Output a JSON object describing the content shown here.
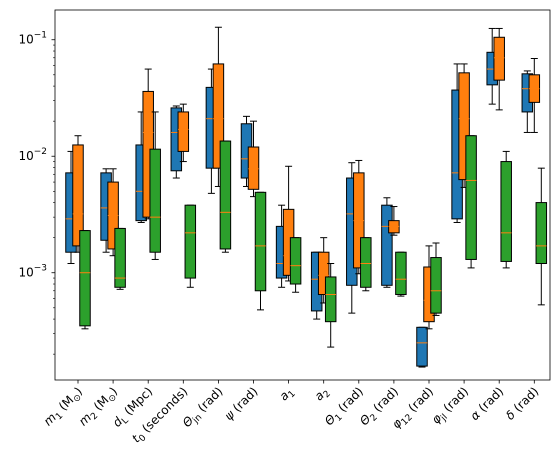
{
  "chart_data": {
    "type": "boxplot",
    "yscale": "log",
    "ylim": [
      0.00012,
      0.18
    ],
    "yticks": [
      {
        "value": 0.001,
        "base": "10",
        "exp": "−3"
      },
      {
        "value": 0.01,
        "base": "10",
        "exp": "−2"
      },
      {
        "value": 0.1,
        "base": "10",
        "exp": "−1"
      }
    ],
    "categories": [
      {
        "main": "m",
        "sub": "1",
        "unit": " (M",
        "unitsub": "⊙",
        "end": ")"
      },
      {
        "main": "m",
        "sub": "2",
        "unit": " (M",
        "unitsub": "⊙",
        "end": ")"
      },
      {
        "main": "d",
        "sub": "L",
        "unit": " (Mpc)",
        "unitsub": "",
        "end": ""
      },
      {
        "main": "t",
        "sub": "0",
        "unit": " (seconds)",
        "unitsub": "",
        "end": ""
      },
      {
        "main": "Θ",
        "sub": "jn",
        "unit": " (rad)",
        "unitsub": "",
        "end": ""
      },
      {
        "main": "ψ",
        "sub": "",
        "unit": " (rad)",
        "unitsub": "",
        "end": ""
      },
      {
        "main": "a",
        "sub": "1",
        "unit": "",
        "unitsub": "",
        "end": ""
      },
      {
        "main": "a",
        "sub": "2",
        "unit": "",
        "unitsub": "",
        "end": ""
      },
      {
        "main": "Θ",
        "sub": "1",
        "unit": " (rad)",
        "unitsub": "",
        "end": ""
      },
      {
        "main": "Θ",
        "sub": "2",
        "unit": " (rad)",
        "unitsub": "",
        "end": ""
      },
      {
        "main": "φ",
        "sub": "12",
        "unit": " (rad)",
        "unitsub": "",
        "end": ""
      },
      {
        "main": "φ",
        "sub": "jl",
        "unit": " (rad)",
        "unitsub": "",
        "end": ""
      },
      {
        "main": "α",
        "sub": "",
        "unit": " (rad)",
        "unitsub": "",
        "end": ""
      },
      {
        "main": "δ",
        "sub": "",
        "unit": " (rad)",
        "unitsub": "",
        "end": ""
      }
    ],
    "colors": {
      "blue": "#1f77b4",
      "orange": "#ff7f0e",
      "green": "#2ca02c",
      "median": "#ff7f0e",
      "whisker": "#000000"
    },
    "series": [
      {
        "color": "#1f77b4",
        "boxes": [
          {
            "whislo": 0.0012,
            "q1": 0.0015,
            "med": 0.0029,
            "q3": 0.0072,
            "whishi": 0.011
          },
          {
            "whislo": 0.0015,
            "q1": 0.0019,
            "med": 0.0036,
            "q3": 0.0072,
            "whishi": 0.0078
          },
          {
            "whislo": 0.0027,
            "q1": 0.0028,
            "med": 0.005,
            "q3": 0.0125,
            "whishi": 0.024
          },
          {
            "whislo": 0.0065,
            "q1": 0.0075,
            "med": 0.016,
            "q3": 0.026,
            "whishi": 0.027
          },
          {
            "whislo": 0.0048,
            "q1": 0.0079,
            "med": 0.021,
            "q3": 0.039,
            "whishi": 0.056
          },
          {
            "whislo": 0.0055,
            "q1": 0.0065,
            "med": 0.0095,
            "q3": 0.019,
            "whishi": 0.022
          },
          {
            "whislo": 0.00075,
            "q1": 0.0009,
            "med": 0.0012,
            "q3": 0.0025,
            "whishi": 0.0038
          },
          {
            "whislo": 0.0004,
            "q1": 0.00047,
            "med": 0.00088,
            "q3": 0.0015,
            "whishi": 0.0015
          },
          {
            "whislo": 0.00045,
            "q1": 0.00078,
            "med": 0.0032,
            "q3": 0.0065,
            "whishi": 0.0088
          },
          {
            "whislo": 0.00075,
            "q1": 0.00078,
            "med": 0.0025,
            "q3": 0.0038,
            "whishi": 0.0044
          },
          {
            "whislo": 0.000155,
            "q1": 0.000158,
            "med": 0.00025,
            "q3": 0.00034,
            "whishi": 0.00034
          },
          {
            "whislo": 0.0027,
            "q1": 0.0029,
            "med": 0.0072,
            "q3": 0.037,
            "whishi": 0.062
          },
          {
            "whislo": 0.028,
            "q1": 0.041,
            "med": 0.056,
            "q3": 0.078,
            "whishi": 0.125
          },
          {
            "whislo": 0.016,
            "q1": 0.024,
            "med": 0.038,
            "q3": 0.051,
            "whishi": 0.054
          }
        ]
      },
      {
        "color": "#ff7f0e",
        "boxes": [
          {
            "whislo": 0.0015,
            "q1": 0.0017,
            "med": 0.0032,
            "q3": 0.0125,
            "whishi": 0.015
          },
          {
            "whislo": 0.0014,
            "q1": 0.0016,
            "med": 0.0031,
            "q3": 0.006,
            "whishi": 0.0078
          },
          {
            "whislo": 0.0029,
            "q1": 0.003,
            "med": 0.016,
            "q3": 0.036,
            "whishi": 0.056
          },
          {
            "whislo": 0.009,
            "q1": 0.011,
            "med": 0.017,
            "q3": 0.024,
            "whishi": 0.028
          },
          {
            "whislo": 0.0055,
            "q1": 0.0079,
            "med": 0.021,
            "q3": 0.062,
            "whishi": 0.128
          },
          {
            "whislo": 0.0045,
            "q1": 0.0052,
            "med": 0.0078,
            "q3": 0.012,
            "whishi": 0.02
          },
          {
            "whislo": 0.00085,
            "q1": 0.00095,
            "med": 0.0014,
            "q3": 0.0035,
            "whishi": 0.0082
          },
          {
            "whislo": 0.00055,
            "q1": 0.00065,
            "med": 0.00095,
            "q3": 0.0015,
            "whishi": 0.002
          },
          {
            "whislo": 0.00098,
            "q1": 0.0011,
            "med": 0.0028,
            "q3": 0.0072,
            "whishi": 0.0092
          },
          {
            "whislo": 0.0021,
            "q1": 0.0022,
            "med": 0.0025,
            "q3": 0.0028,
            "whishi": 0.0037
          },
          {
            "whislo": 0.00033,
            "q1": 0.00038,
            "med": 0.00058,
            "q3": 0.00112,
            "whishi": 0.0017
          },
          {
            "whislo": 0.0054,
            "q1": 0.0063,
            "med": 0.021,
            "q3": 0.052,
            "whishi": 0.062
          },
          {
            "whislo": 0.025,
            "q1": 0.045,
            "med": 0.07,
            "q3": 0.105,
            "whishi": 0.125
          },
          {
            "whislo": 0.016,
            "q1": 0.029,
            "med": 0.038,
            "q3": 0.05,
            "whishi": 0.069
          }
        ]
      },
      {
        "color": "#2ca02c",
        "boxes": [
          {
            "whislo": 0.00033,
            "q1": 0.00035,
            "med": 0.001,
            "q3": 0.0023,
            "whishi": 0.0023
          },
          {
            "whislo": 0.00072,
            "q1": 0.00075,
            "med": 0.0009,
            "q3": 0.0024,
            "whishi": 0.0024
          },
          {
            "whislo": 0.0013,
            "q1": 0.0015,
            "med": 0.003,
            "q3": 0.0115,
            "whishi": 0.024
          },
          {
            "whislo": 0.00075,
            "q1": 0.0009,
            "med": 0.0022,
            "q3": 0.0038,
            "whishi": 0.0038
          },
          {
            "whislo": 0.0015,
            "q1": 0.0016,
            "med": 0.0033,
            "q3": 0.0135,
            "whishi": 0.0135
          },
          {
            "whislo": 0.00048,
            "q1": 0.0007,
            "med": 0.0017,
            "q3": 0.0049,
            "whishi": 0.0049
          },
          {
            "whislo": 0.00068,
            "q1": 0.0008,
            "med": 0.00115,
            "q3": 0.002,
            "whishi": 0.002
          },
          {
            "whislo": 0.00023,
            "q1": 0.00038,
            "med": 0.00065,
            "q3": 0.00092,
            "whishi": 0.0012
          },
          {
            "whislo": 0.0007,
            "q1": 0.00075,
            "med": 0.0012,
            "q3": 0.002,
            "whishi": 0.002
          },
          {
            "whislo": 0.00063,
            "q1": 0.00065,
            "med": 0.00088,
            "q3": 0.0015,
            "whishi": 0.0015
          },
          {
            "whislo": 0.00043,
            "q1": 0.00045,
            "med": 0.0007,
            "q3": 0.00135,
            "whishi": 0.0018
          },
          {
            "whislo": 0.0011,
            "q1": 0.0013,
            "med": 0.0062,
            "q3": 0.015,
            "whishi": 0.015
          },
          {
            "whislo": 0.0011,
            "q1": 0.00125,
            "med": 0.0022,
            "q3": 0.009,
            "whishi": 0.011
          },
          {
            "whislo": 0.00053,
            "q1": 0.0012,
            "med": 0.0017,
            "q3": 0.004,
            "whishi": 0.0079
          }
        ]
      }
    ]
  }
}
